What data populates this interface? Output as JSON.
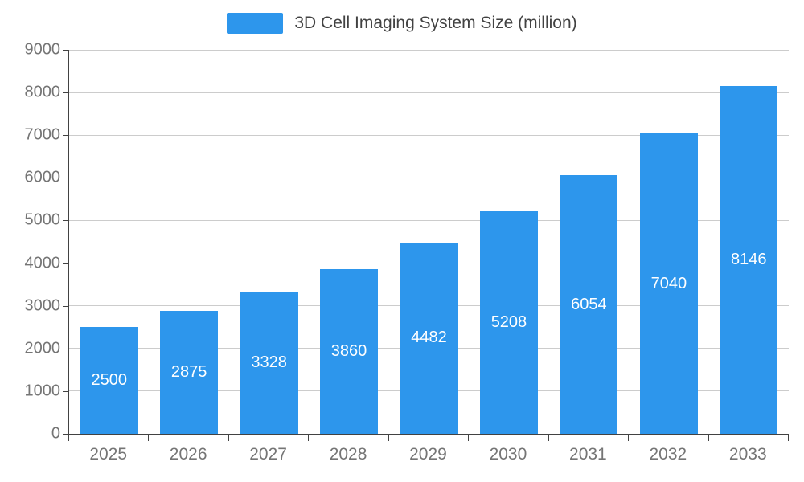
{
  "legend": {
    "label": "3D Cell Imaging System Size (million)"
  },
  "chart_data": {
    "type": "bar",
    "title": "3D Cell Imaging System Size (million)",
    "categories": [
      "2025",
      "2026",
      "2027",
      "2028",
      "2029",
      "2030",
      "2031",
      "2032",
      "2033"
    ],
    "values": [
      2500,
      2875,
      3328,
      3860,
      4482,
      5208,
      6054,
      7040,
      8146
    ],
    "xlabel": "",
    "ylabel": "",
    "ylim": [
      0,
      9000
    ],
    "ytick_step": 1000,
    "grid": true,
    "legend_position": "top",
    "bar_color": "#2D96EC",
    "value_label_color": "#ffffff",
    "axis_color": "#424242",
    "grid_color": "#cccccc",
    "tick_label_color": "#757575"
  }
}
